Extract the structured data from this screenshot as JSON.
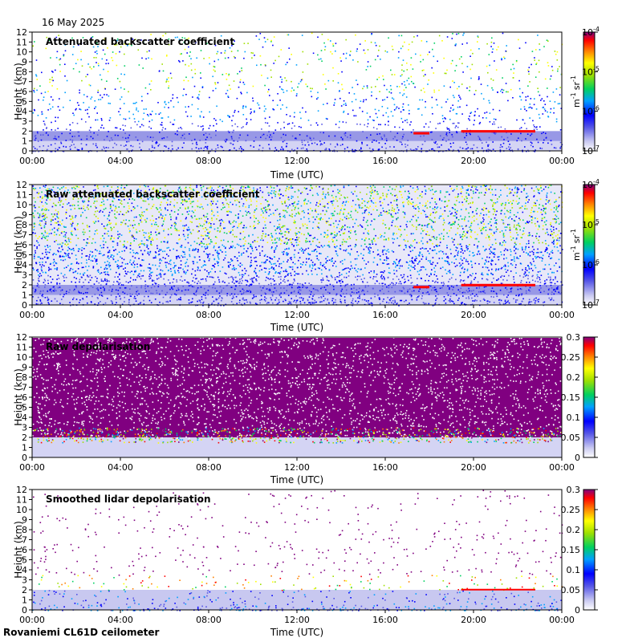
{
  "header": {
    "date": "16 May 2025"
  },
  "footer": {
    "site": "Rovaniemi CL61D ceilometer"
  },
  "chart_data": [
    {
      "type": "heatmap",
      "title": "Attenuated backscatter coefficient",
      "xlabel": "Time (UTC)",
      "ylabel": "Height (km)",
      "x_ticks": [
        "00:00",
        "04:00",
        "08:00",
        "12:00",
        "16:00",
        "20:00",
        "00:00"
      ],
      "y_ticks": [
        "0",
        "1",
        "2",
        "3",
        "4",
        "5",
        "6",
        "7",
        "8",
        "9",
        "10",
        "11",
        "12"
      ],
      "ylim": [
        0,
        12
      ],
      "colorbar": {
        "scale": "log",
        "range": [
          1e-07,
          0.0001
        ],
        "tick_base": "10",
        "tick_exponents": [
          "-7",
          "-6",
          "-5",
          "-4"
        ],
        "label_unit": "m",
        "label_exp1": "-1",
        "label_unit2": "sr",
        "label_exp2": "-1"
      }
    },
    {
      "type": "heatmap",
      "title": "Raw attenuated backscatter coefficient",
      "xlabel": "Time (UTC)",
      "ylabel": "Height (km)",
      "x_ticks": [
        "00:00",
        "04:00",
        "08:00",
        "12:00",
        "16:00",
        "20:00",
        "00:00"
      ],
      "y_ticks": [
        "0",
        "1",
        "2",
        "3",
        "4",
        "5",
        "6",
        "7",
        "8",
        "9",
        "10",
        "11",
        "12"
      ],
      "ylim": [
        0,
        12
      ],
      "colorbar": {
        "scale": "log",
        "range": [
          1e-07,
          0.0001
        ],
        "tick_base": "10",
        "tick_exponents": [
          "-7",
          "-6",
          "-5",
          "-4"
        ],
        "label_unit": "m",
        "label_exp1": "-1",
        "label_unit2": "sr",
        "label_exp2": "-1"
      }
    },
    {
      "type": "heatmap",
      "title": "Raw depolarisation",
      "xlabel": "Time (UTC)",
      "ylabel": "Height (km)",
      "x_ticks": [
        "00:00",
        "04:00",
        "08:00",
        "12:00",
        "16:00",
        "20:00",
        "00:00"
      ],
      "y_ticks": [
        "0",
        "1",
        "2",
        "3",
        "4",
        "5",
        "6",
        "7",
        "8",
        "9",
        "10",
        "11",
        "12"
      ],
      "ylim": [
        0,
        12
      ],
      "colorbar": {
        "scale": "linear",
        "range": [
          0,
          0.3
        ],
        "ticks": [
          "0",
          "0.05",
          "0.1",
          "0.15",
          "0.2",
          "0.25",
          "0.3"
        ]
      }
    },
    {
      "type": "heatmap",
      "title": "Smoothed lidar depolarisation",
      "xlabel": "Time (UTC)",
      "ylabel": "Height (km)",
      "x_ticks": [
        "00:00",
        "04:00",
        "08:00",
        "12:00",
        "16:00",
        "20:00",
        "00:00"
      ],
      "y_ticks": [
        "0",
        "1",
        "2",
        "3",
        "4",
        "5",
        "6",
        "7",
        "8",
        "9",
        "10",
        "11",
        "12"
      ],
      "ylim": [
        0,
        12
      ],
      "colorbar": {
        "scale": "linear",
        "range": [
          0,
          0.3
        ],
        "ticks": [
          "0",
          "0.05",
          "0.1",
          "0.15",
          "0.2",
          "0.25",
          "0.3"
        ]
      }
    }
  ]
}
